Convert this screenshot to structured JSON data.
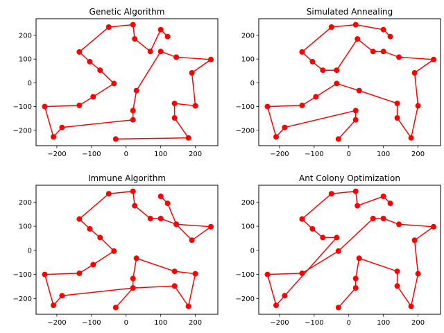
{
  "chart_data": [
    {
      "type": "line",
      "title": "Genetic Algorithm",
      "xlim": [
        -260,
        265
      ],
      "ylim": [
        -265,
        270
      ],
      "xticks": [
        -200,
        -100,
        0,
        100,
        200
      ],
      "yticks": [
        -200,
        -100,
        0,
        100,
        200
      ],
      "color": "#ff0000",
      "x": [
        -30,
        20,
        25,
        70,
        100,
        120,
        100,
        70,
        25,
        20,
        25,
        140,
        200,
        190,
        245,
        145,
        100,
        30,
        20,
        20,
        -185,
        -210,
        -235,
        -135,
        -95,
        -35,
        -75,
        -105,
        -135,
        -50,
        -30
      ],
      "y": [
        -235,
        -235,
        185,
        130,
        225,
        195,
        130,
        130,
        185,
        245,
        185,
        105,
        100,
        45,
        100,
        105,
        130,
        -30,
        -115,
        -155,
        -190,
        -228,
        -100,
        -95,
        -60,
        -2,
        55,
        90,
        130,
        235,
        240
      ],
      "series": [
        {
          "x": [
            -30,
            180,
            140,
            140,
            200,
            190,
            245,
            145,
            100,
            30,
            20,
            20,
            -185,
            -210,
            -235,
            -135,
            -95,
            -35,
            -75,
            -105,
            -135,
            -50,
            20,
            25,
            70,
            100,
            120
          ],
          "y": [
            -237,
            -232,
            -148,
            -87,
            -97,
            42,
            98,
            108,
            132,
            -33,
            -117,
            -156,
            -188,
            -228,
            -100,
            -95,
            -59,
            -3,
            53,
            89,
            130,
            235,
            245,
            185,
            132,
            224,
            195
          ]
        }
      ]
    },
    {
      "type": "line",
      "title": "Simulated Annealing",
      "xlim": [
        -260,
        265
      ],
      "ylim": [
        -265,
        270
      ],
      "xticks": [
        -200,
        -100,
        0,
        100,
        200
      ],
      "yticks": [
        -200,
        -100,
        0,
        100,
        200
      ],
      "color": "#ff0000",
      "series": [
        {
          "x": [
            -30,
            20,
            20,
            -185,
            -210,
            -235,
            -135,
            -95,
            -35,
            30,
            140,
            140,
            180,
            200,
            190,
            245,
            145,
            100,
            70,
            25,
            -35,
            -75,
            -105,
            -135,
            -50,
            20,
            100,
            120
          ],
          "y": [
            -237,
            -156,
            -117,
            -188,
            -228,
            -100,
            -95,
            -59,
            -3,
            -33,
            -87,
            -148,
            -232,
            -97,
            42,
            98,
            108,
            132,
            132,
            185,
            53,
            53,
            89,
            130,
            235,
            245,
            224,
            195
          ]
        }
      ]
    },
    {
      "type": "line",
      "title": "Immune Algorithm",
      "xlim": [
        -260,
        265
      ],
      "ylim": [
        -265,
        270
      ],
      "xticks": [
        -200,
        -100,
        0,
        100,
        200
      ],
      "yticks": [
        -200,
        -100,
        0,
        100,
        200
      ],
      "color": "#ff0000",
      "series": [
        {
          "x": [
            -30,
            20,
            20,
            30,
            140,
            200,
            180,
            140,
            20,
            -185,
            -210,
            -235,
            -135,
            -95,
            -35,
            -75,
            -105,
            -135,
            -50,
            20,
            25,
            70,
            100,
            145,
            245,
            190,
            145,
            120,
            100
          ],
          "y": [
            -237,
            -156,
            -117,
            -33,
            -87,
            -97,
            -232,
            -148,
            -156,
            -188,
            -228,
            -100,
            -95,
            -59,
            -3,
            53,
            89,
            130,
            235,
            245,
            185,
            132,
            132,
            108,
            98,
            42,
            108,
            195,
            224
          ]
        }
      ]
    },
    {
      "type": "line",
      "title": "Ant Colony Optimization",
      "xlim": [
        -260,
        265
      ],
      "ylim": [
        -265,
        270
      ],
      "xticks": [
        -200,
        -100,
        0,
        100,
        200
      ],
      "yticks": [
        -200,
        -100,
        0,
        100,
        200
      ],
      "color": "#ff0000",
      "series": [
        {
          "x": [
            -30,
            20,
            20,
            30,
            140,
            140,
            180,
            200,
            190,
            245,
            145,
            100,
            70,
            -30,
            -135,
            -235,
            -210,
            -185,
            -35,
            -75,
            -105,
            -135,
            -50,
            20,
            25,
            100,
            120
          ],
          "y": [
            -237,
            -156,
            -117,
            -33,
            -87,
            -148,
            -232,
            -97,
            42,
            98,
            108,
            132,
            132,
            -3,
            -95,
            -100,
            -228,
            -188,
            53,
            53,
            89,
            130,
            235,
            245,
            185,
            224,
            195
          ]
        }
      ]
    }
  ]
}
